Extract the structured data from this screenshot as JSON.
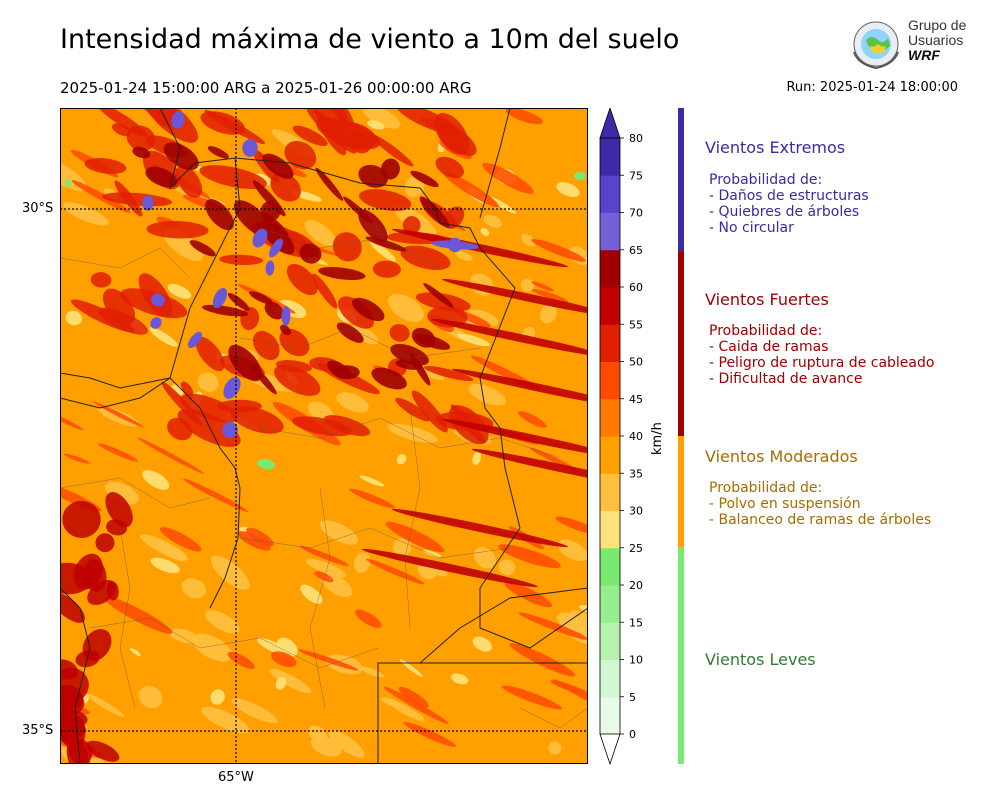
{
  "header": {
    "title": "Intensidad máxima de viento a 10m del suelo",
    "period": "2025-01-24 15:00:00 ARG  a  2025-01-26 00:00:00 ARG",
    "run": "Run: 2025-01-24 18:00:00"
  },
  "logo": {
    "line1": "Grupo de",
    "line2": "Usuarios",
    "line3": "WRF",
    "icon": "globe-logo-icon"
  },
  "map": {
    "lat_labels": [
      "30°S",
      "35°S"
    ],
    "lon_labels": [
      "65°W"
    ]
  },
  "colorbar": {
    "unit": "km/h",
    "ticks": [
      "0",
      "5",
      "10",
      "15",
      "20",
      "25",
      "30",
      "35",
      "40",
      "45",
      "50",
      "55",
      "60",
      "65",
      "70",
      "75",
      "80"
    ],
    "colors": [
      "#e8fbe8",
      "#d2f7d2",
      "#b6f2b0",
      "#96ee8e",
      "#78ea70",
      "#ffe27a",
      "#ffc040",
      "#ffa000",
      "#ff7a00",
      "#ff4a00",
      "#e01e00",
      "#c00000",
      "#a00000",
      "#7560d8",
      "#5644cc",
      "#3e2aa8"
    ]
  },
  "categories": [
    {
      "title": "Vientos Extremos",
      "color": "#3a2aa6",
      "bar": "#3a2aa6",
      "lines": [
        "Probabilidad de:",
        "- Daños de estructuras",
        "- Quiebres de árboles",
        "- No circular"
      ]
    },
    {
      "title": "Vientos Fuertes",
      "color": "#a00000",
      "bar": "#a00000",
      "lines": [
        "Probabilidad de:",
        "- Caida de ramas",
        "- Peligro de ruptura de cableado",
        "- Dificultad de avance"
      ]
    },
    {
      "title": "Vientos Moderados",
      "color": "#a86c00",
      "bar": "#ffa000",
      "lines": [
        "Probabilidad de:",
        "- Polvo en suspensión",
        "- Balanceo de ramas de árboles"
      ]
    },
    {
      "title": "Vientos Leves",
      "color": "#2e7d32",
      "bar": "#78ea70",
      "lines": []
    }
  ]
}
